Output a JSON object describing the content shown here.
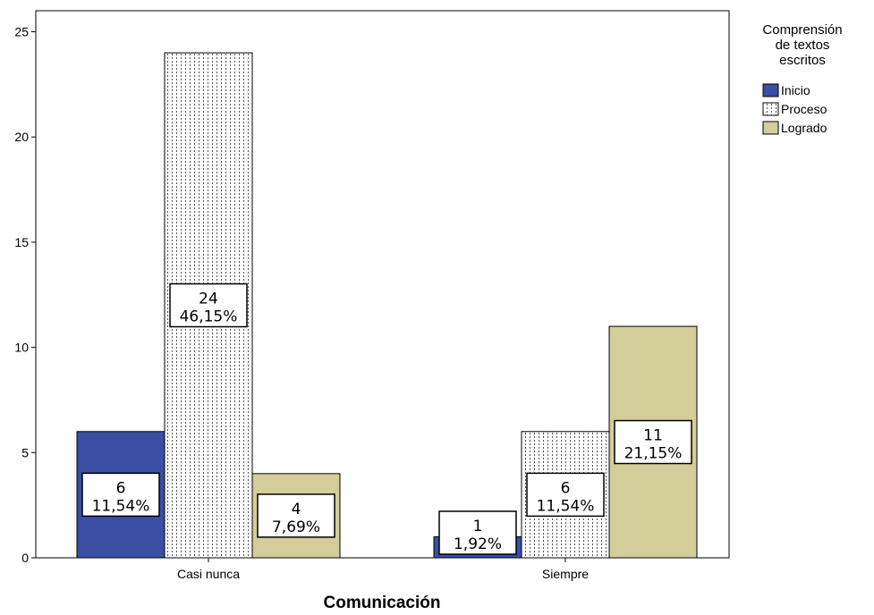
{
  "chart_data": {
    "type": "bar",
    "categories": [
      "Casi nunca",
      "Siempre"
    ],
    "series": [
      {
        "name": "Inicio",
        "values": [
          6,
          1
        ],
        "percents": [
          "11,54%",
          "1,92%"
        ]
      },
      {
        "name": "Proceso",
        "values": [
          24,
          6
        ],
        "percents": [
          "46,15%",
          "11,54%"
        ]
      },
      {
        "name": "Logrado",
        "values": [
          4,
          11
        ],
        "percents": [
          "7,69%",
          "21,15%"
        ]
      }
    ],
    "xlabel": "Comunicación",
    "ylabel": "",
    "ylim": [
      0,
      26
    ],
    "yticks": [
      "0",
      "5",
      "10",
      "15",
      "20",
      "25"
    ],
    "legend_title_lines": [
      "Comprensión",
      "de textos",
      "escritos"
    ],
    "legend_position": "top-right",
    "grid": false,
    "colors": {
      "Inicio": "#3a4fa3",
      "Proceso": "#ffffff",
      "Logrado": "#d3cd99"
    }
  }
}
